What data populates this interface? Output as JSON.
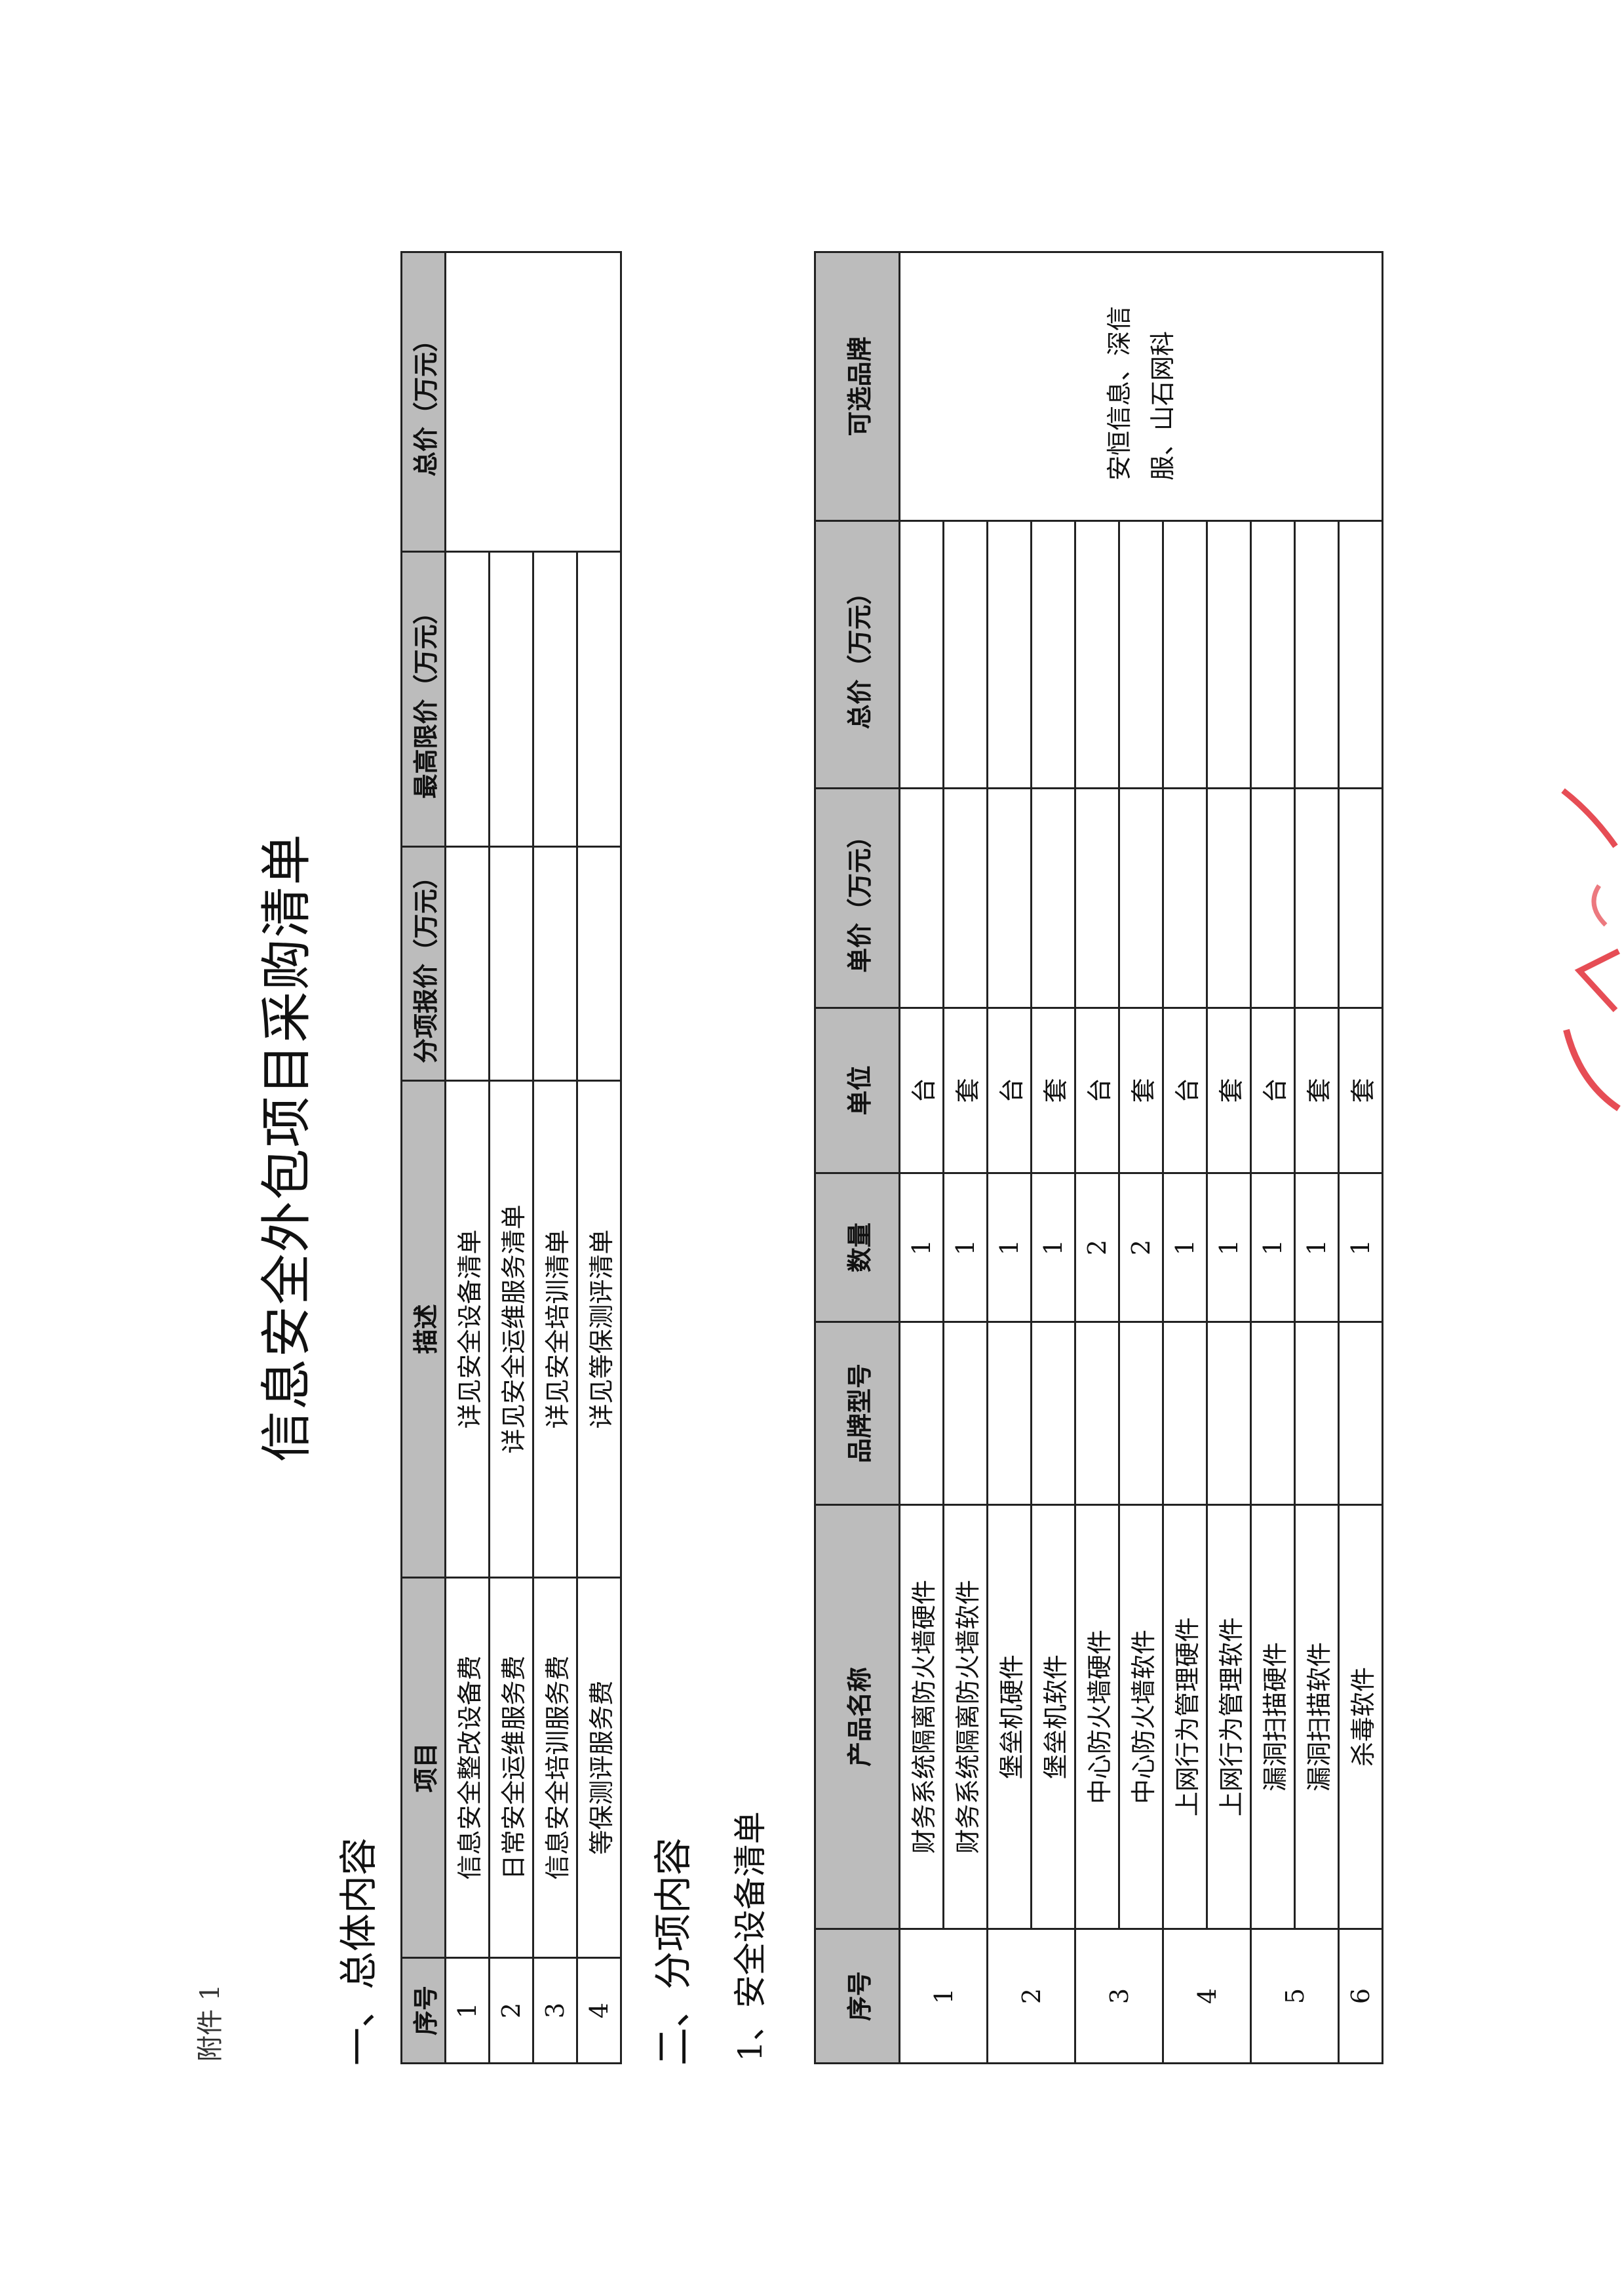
{
  "attachment_label": "附件 1",
  "title": "信息安全外包项目采购清单",
  "section1": {
    "heading": "一、总体内容",
    "headers": [
      "序号",
      "项目",
      "描述",
      "分项报价（万元）",
      "最高限价（万元）",
      "总价（万元）"
    ],
    "rows": [
      {
        "no": "1",
        "item": "信息安全整改设备费",
        "desc": "详见安全设备清单"
      },
      {
        "no": "2",
        "item": "日常安全运维服务费",
        "desc": "详见安全运维服务清单"
      },
      {
        "no": "3",
        "item": "信息安全培训服务费",
        "desc": "详见安全培训清单"
      },
      {
        "no": "4",
        "item": "等保测评服务费",
        "desc": "详见等保测评清单"
      }
    ]
  },
  "section2": {
    "heading": "二、分项内容",
    "subheading": "1、安全设备清单",
    "headers": [
      "序号",
      "产品名称",
      "品牌型号",
      "数量",
      "单位",
      "单价（万元）",
      "总价（万元）",
      "可选品牌"
    ],
    "groups": [
      {
        "no": "1",
        "items": [
          {
            "name": "财务系统隔离防火墙硬件",
            "qty": "1",
            "unit": "台"
          },
          {
            "name": "财务系统隔离防火墙软件",
            "qty": "1",
            "unit": "套"
          }
        ]
      },
      {
        "no": "2",
        "items": [
          {
            "name": "堡垒机硬件",
            "qty": "1",
            "unit": "台"
          },
          {
            "name": "堡垒机软件",
            "qty": "1",
            "unit": "套"
          }
        ]
      },
      {
        "no": "3",
        "items": [
          {
            "name": "中心防火墙硬件",
            "qty": "2",
            "unit": "台"
          },
          {
            "name": "中心防火墙软件",
            "qty": "2",
            "unit": "套"
          }
        ]
      },
      {
        "no": "4",
        "items": [
          {
            "name": "上网行为管理硬件",
            "qty": "1",
            "unit": "台"
          },
          {
            "name": "上网行为管理软件",
            "qty": "1",
            "unit": "套"
          }
        ]
      },
      {
        "no": "5",
        "items": [
          {
            "name": "漏洞扫描硬件",
            "qty": "1",
            "unit": "台"
          },
          {
            "name": "漏洞扫描软件",
            "qty": "1",
            "unit": "套"
          }
        ]
      },
      {
        "no": "6",
        "items": [
          {
            "name": "杀毒软件",
            "qty": "1",
            "unit": "套"
          }
        ]
      }
    ],
    "optional_brands": "安恒信息、深信服、山石网科"
  },
  "colors": {
    "header_fill": "#bcbcbc",
    "stamp": "#e0202a"
  }
}
